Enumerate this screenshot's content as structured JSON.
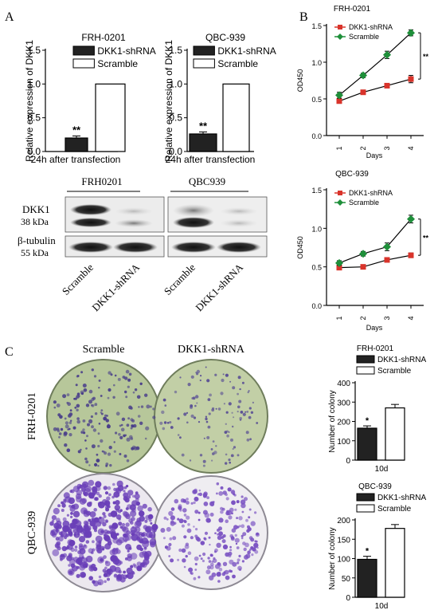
{
  "panel_letters": {
    "a": "A",
    "b": "B",
    "c": "C"
  },
  "blot": {
    "cell_lines": [
      "FRH0201",
      "QBC939"
    ],
    "dkk1_label": "DKK1",
    "dkk1_kda": "38 kDa",
    "tubulin_label": "β-tubulin",
    "tubulin_kda": "55 kDa",
    "lanes": [
      "Scramble",
      "DKK1-shRNA",
      "Scramble",
      "DKK1-shRNA"
    ]
  },
  "plates": {
    "col_labels": [
      "Scramble",
      "DKK1-shRNA"
    ],
    "row_labels": [
      "FRH-0201",
      "QBC-939"
    ]
  },
  "colors": {
    "shrna": "#d9342b",
    "scramble": "#1f8f3a",
    "bar_dark": "#222222"
  },
  "chart_data": [
    {
      "id": "a1",
      "type": "bar",
      "title": "FRH-0201",
      "ylabel": "Relative expression of  DKK1",
      "xlabel": "24h after transfection",
      "ylim": [
        0,
        1.5
      ],
      "yticks": [
        "0.0",
        "0.5",
        "1.0",
        "1.5"
      ],
      "legend": [
        "DKK1-shRNA",
        "Scramble"
      ],
      "values": [
        0.2,
        1.0
      ],
      "errors": [
        0.03,
        0
      ],
      "annotations": [
        "**",
        ""
      ]
    },
    {
      "id": "a2",
      "type": "bar",
      "title": "QBC-939",
      "ylabel": "Relative expression of  DKK1",
      "xlabel": "24h after transfection",
      "ylim": [
        0,
        1.5
      ],
      "yticks": [
        "0.0",
        "0.5",
        "1.0",
        "1.5"
      ],
      "legend": [
        "DKK1-shRNA",
        "Scramble"
      ],
      "values": [
        0.26,
        1.0
      ],
      "errors": [
        0.03,
        0
      ],
      "annotations": [
        "**",
        ""
      ]
    },
    {
      "id": "b1",
      "type": "line",
      "title": "FRH-0201",
      "ylabel": "OD450",
      "xlabel": "Days",
      "x": [
        1,
        2,
        3,
        4
      ],
      "xticks": [
        "1",
        "2",
        "3",
        "4"
      ],
      "ylim": [
        0,
        1.5
      ],
      "yticks": [
        "0.0",
        "0.5",
        "1.0",
        "1.5"
      ],
      "series": [
        {
          "name": "DKK1-shRNA",
          "values": [
            0.47,
            0.59,
            0.68,
            0.77
          ],
          "errors": [
            0.03,
            0.03,
            0.03,
            0.05
          ]
        },
        {
          "name": "Scramble",
          "values": [
            0.55,
            0.82,
            1.1,
            1.4
          ],
          "errors": [
            0.04,
            0.03,
            0.05,
            0.04
          ]
        }
      ],
      "significance": "**"
    },
    {
      "id": "b2",
      "type": "line",
      "title": "QBC-939",
      "ylabel": "OD450",
      "xlabel": "Days",
      "x": [
        1,
        2,
        3,
        4
      ],
      "xticks": [
        "1",
        "2",
        "3",
        "4"
      ],
      "ylim": [
        0,
        1.5
      ],
      "yticks": [
        "0.0",
        "0.5",
        "1.0",
        "1.5"
      ],
      "series": [
        {
          "name": "DKK1-shRNA",
          "values": [
            0.49,
            0.5,
            0.59,
            0.65
          ],
          "errors": [
            0.02,
            0.02,
            0.02,
            0.03
          ]
        },
        {
          "name": "Scramble",
          "values": [
            0.55,
            0.67,
            0.76,
            1.12
          ],
          "errors": [
            0.03,
            0.03,
            0.05,
            0.05
          ]
        }
      ],
      "significance": "**"
    },
    {
      "id": "c1",
      "type": "bar",
      "title": "FRH-0201",
      "ylabel": "Number of colony",
      "xlabel": "10d",
      "ylim": [
        0,
        400
      ],
      "yticks": [
        "0",
        "100",
        "200",
        "300",
        "400"
      ],
      "legend": [
        "DKK1-shRNA",
        "Scramble"
      ],
      "values": [
        165,
        270
      ],
      "errors": [
        12,
        18
      ],
      "annotations": [
        "*",
        ""
      ]
    },
    {
      "id": "c2",
      "type": "bar",
      "title": "QBC-939",
      "ylabel": "Number of colony",
      "xlabel": "10d",
      "ylim": [
        0,
        200
      ],
      "yticks": [
        "0",
        "50",
        "100",
        "150",
        "200"
      ],
      "legend": [
        "DKK1-shRNA",
        "Scramble"
      ],
      "values": [
        98,
        178
      ],
      "errors": [
        8,
        10
      ],
      "annotations": [
        "*",
        ""
      ]
    }
  ]
}
